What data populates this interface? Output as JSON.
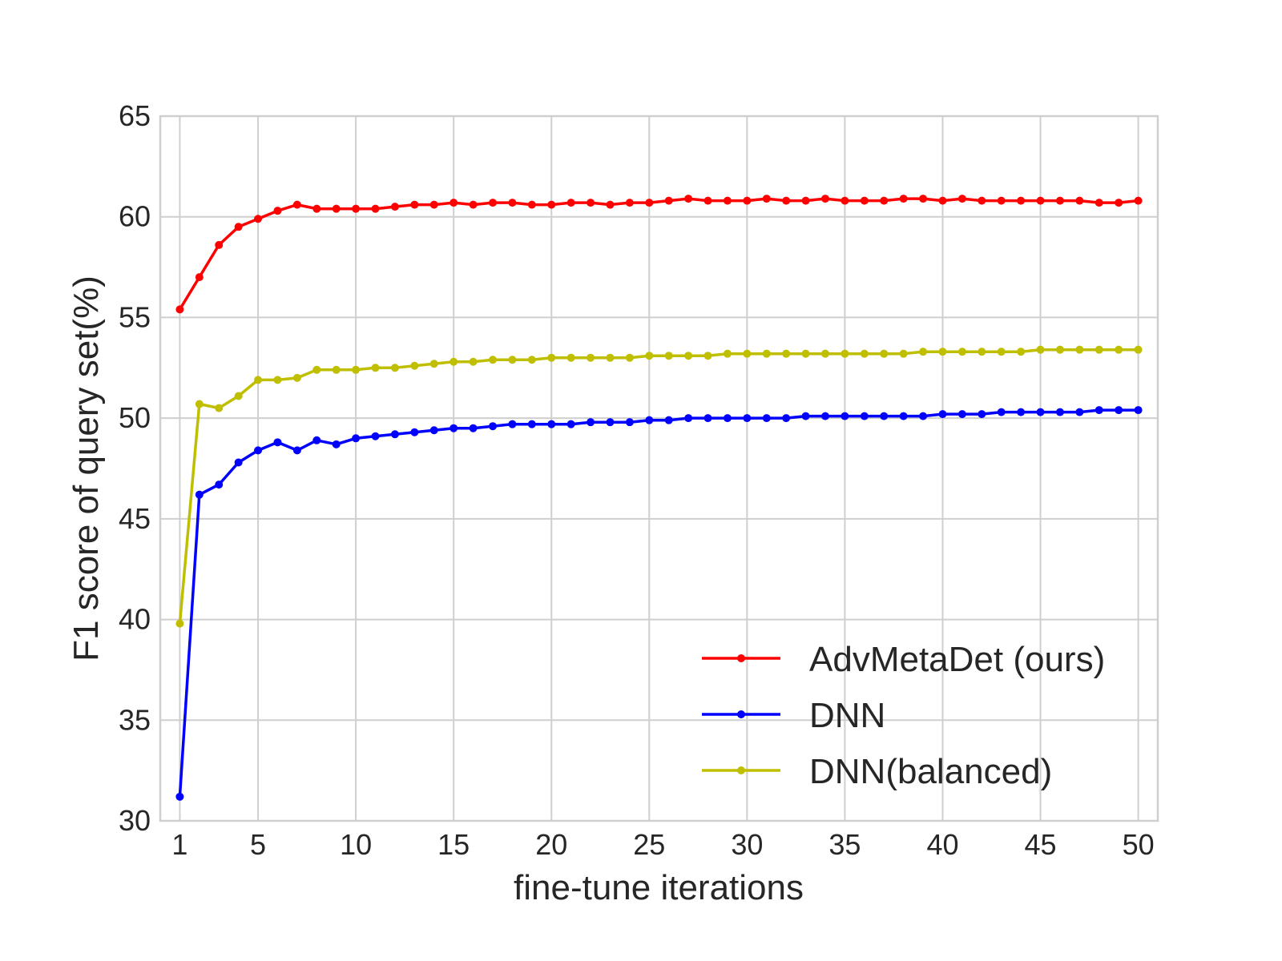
{
  "chart_data": {
    "type": "line",
    "xlabel": "fine-tune iterations",
    "ylabel": "F1 score of query set(%)",
    "xlim": [
      0,
      51
    ],
    "ylim": [
      30,
      65
    ],
    "xticks": [
      1,
      5,
      10,
      15,
      20,
      25,
      30,
      35,
      40,
      45,
      50
    ],
    "yticks": [
      30,
      35,
      40,
      45,
      50,
      55,
      60,
      65
    ],
    "grid": true,
    "legend_position": "lower-right",
    "x": [
      1,
      2,
      3,
      4,
      5,
      6,
      7,
      8,
      9,
      10,
      11,
      12,
      13,
      14,
      15,
      16,
      17,
      18,
      19,
      20,
      21,
      22,
      23,
      24,
      25,
      26,
      27,
      28,
      29,
      30,
      31,
      32,
      33,
      34,
      35,
      36,
      37,
      38,
      39,
      40,
      41,
      42,
      43,
      44,
      45,
      46,
      47,
      48,
      49,
      50
    ],
    "series": [
      {
        "name": "AdvMetaDet (ours)",
        "color": "#ff0000",
        "values": [
          55.4,
          57.0,
          58.6,
          59.5,
          59.9,
          60.3,
          60.6,
          60.4,
          60.4,
          60.4,
          60.4,
          60.5,
          60.6,
          60.6,
          60.7,
          60.6,
          60.7,
          60.7,
          60.6,
          60.6,
          60.7,
          60.7,
          60.6,
          60.7,
          60.7,
          60.8,
          60.9,
          60.8,
          60.8,
          60.8,
          60.9,
          60.8,
          60.8,
          60.9,
          60.8,
          60.8,
          60.8,
          60.9,
          60.9,
          60.8,
          60.9,
          60.8,
          60.8,
          60.8,
          60.8,
          60.8,
          60.8,
          60.7,
          60.7,
          60.8
        ]
      },
      {
        "name": "DNN",
        "color": "#0000ff",
        "values": [
          31.2,
          46.2,
          46.7,
          47.8,
          48.4,
          48.8,
          48.4,
          48.9,
          48.7,
          49.0,
          49.1,
          49.2,
          49.3,
          49.4,
          49.5,
          49.5,
          49.6,
          49.7,
          49.7,
          49.7,
          49.7,
          49.8,
          49.8,
          49.8,
          49.9,
          49.9,
          50.0,
          50.0,
          50.0,
          50.0,
          50.0,
          50.0,
          50.1,
          50.1,
          50.1,
          50.1,
          50.1,
          50.1,
          50.1,
          50.2,
          50.2,
          50.2,
          50.3,
          50.3,
          50.3,
          50.3,
          50.3,
          50.4,
          50.4,
          50.4
        ]
      },
      {
        "name": "DNN(balanced)",
        "color": "#bfbf00",
        "values": [
          39.8,
          50.7,
          50.5,
          51.1,
          51.9,
          51.9,
          52.0,
          52.4,
          52.4,
          52.4,
          52.5,
          52.5,
          52.6,
          52.7,
          52.8,
          52.8,
          52.9,
          52.9,
          52.9,
          53.0,
          53.0,
          53.0,
          53.0,
          53.0,
          53.1,
          53.1,
          53.1,
          53.1,
          53.2,
          53.2,
          53.2,
          53.2,
          53.2,
          53.2,
          53.2,
          53.2,
          53.2,
          53.2,
          53.3,
          53.3,
          53.3,
          53.3,
          53.3,
          53.3,
          53.4,
          53.4,
          53.4,
          53.4,
          53.4,
          53.4
        ]
      }
    ]
  }
}
